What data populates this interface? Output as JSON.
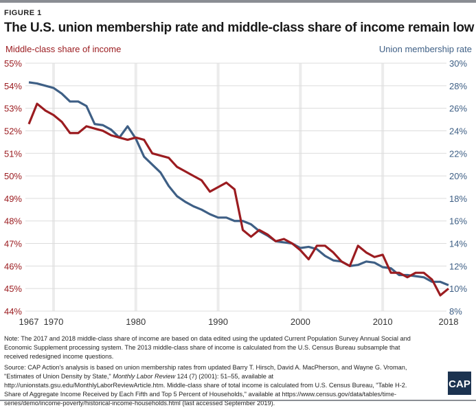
{
  "figure_label": "FIGURE 1",
  "chart_data": {
    "type": "line",
    "title": "The U.S. union membership rate and middle-class share of income remain low",
    "x": [
      1967,
      1968,
      1969,
      1970,
      1971,
      1972,
      1973,
      1974,
      1975,
      1976,
      1977,
      1978,
      1979,
      1980,
      1981,
      1982,
      1983,
      1984,
      1985,
      1986,
      1987,
      1988,
      1989,
      1990,
      1991,
      1992,
      1993,
      1994,
      1995,
      1996,
      1997,
      1998,
      1999,
      2000,
      2001,
      2002,
      2003,
      2004,
      2005,
      2006,
      2007,
      2008,
      2009,
      2010,
      2011,
      2012,
      2013,
      2014,
      2015,
      2016,
      2017,
      2018
    ],
    "x_ticks": [
      "1967",
      "1970",
      "1980",
      "1990",
      "2000",
      "2010",
      "2018"
    ],
    "series": [
      {
        "name": "Middle-class share of income",
        "axis": "left",
        "color": "#9b1c20",
        "values": [
          52.3,
          53.2,
          52.9,
          52.7,
          52.4,
          51.9,
          51.9,
          52.2,
          52.1,
          52.0,
          51.8,
          51.7,
          51.6,
          51.7,
          51.6,
          51.0,
          50.9,
          50.8,
          50.4,
          50.2,
          50.0,
          49.8,
          49.3,
          49.5,
          49.7,
          49.4,
          47.6,
          47.3,
          47.6,
          47.4,
          47.1,
          47.2,
          47.0,
          46.7,
          46.3,
          46.9,
          46.9,
          46.6,
          46.2,
          46.0,
          46.9,
          46.6,
          46.4,
          46.5,
          45.7,
          45.7,
          45.5,
          45.7,
          45.7,
          45.4,
          44.7,
          45.0
        ]
      },
      {
        "name": "Union membership rate",
        "axis": "right",
        "color": "#3e5f85",
        "values": [
          28.3,
          28.2,
          28.0,
          27.8,
          27.3,
          26.6,
          26.6,
          26.2,
          24.6,
          24.5,
          24.1,
          23.4,
          24.4,
          23.3,
          21.7,
          21.0,
          20.3,
          19.1,
          18.2,
          17.7,
          17.3,
          17.0,
          16.6,
          16.3,
          16.3,
          16.0,
          16.0,
          15.7,
          15.1,
          14.7,
          14.2,
          14.1,
          14.0,
          13.6,
          13.7,
          13.5,
          12.9,
          12.5,
          12.4,
          12.0,
          12.1,
          12.4,
          12.3,
          11.9,
          11.8,
          11.2,
          11.2,
          11.1,
          11.0,
          10.6,
          10.6,
          10.3
        ]
      }
    ],
    "left_axis": {
      "label": "Middle-class share of income",
      "ylim": [
        44,
        55
      ],
      "ticks": [
        "55%",
        "54%",
        "53%",
        "52%",
        "51%",
        "50%",
        "49%",
        "48%",
        "47%",
        "46%",
        "45%",
        "44%"
      ]
    },
    "right_axis": {
      "label": "Union membership rate",
      "ylim": [
        8,
        30
      ],
      "ticks": [
        "30%",
        "28%",
        "26%",
        "24%",
        "22%",
        "20%",
        "18%",
        "16%",
        "14%",
        "12%",
        "10%",
        "8%"
      ]
    },
    "grid": true
  },
  "note": "Note: The 2017 and 2018 middle-class share of income are based on data edited using the updated Current Population Survey Annual Social and Economic Supplement processing system. The 2013 middle-class share of income is calculated from the U.S. Census Bureau subsample that received redesigned income questions.",
  "source_pre": "Source: CAP Action's analysis is based on union membership rates from updated Barry T. Hirsch, David A. MacPherson, and Wayne G. Vroman, \"Estimates of Union Density by State,\" ",
  "source_journal": "Monthly Labor Review",
  "source_post": " 124 (7) (2001): 51–55, available at http://unionstats.gsu.edu/MonthlyLaborReviewArticle.htm. Middle-class share of total income is calculated from U.S. Census Bureau, \"Table H-2. Share of Aggregate Income Received by Each Fifth and Top 5 Percent of Households,\" available at https://www.census.gov/data/tables/time-series/demo/income-poverty/historical-income-households.html (last accessed September 2019).",
  "logo": "CAP"
}
